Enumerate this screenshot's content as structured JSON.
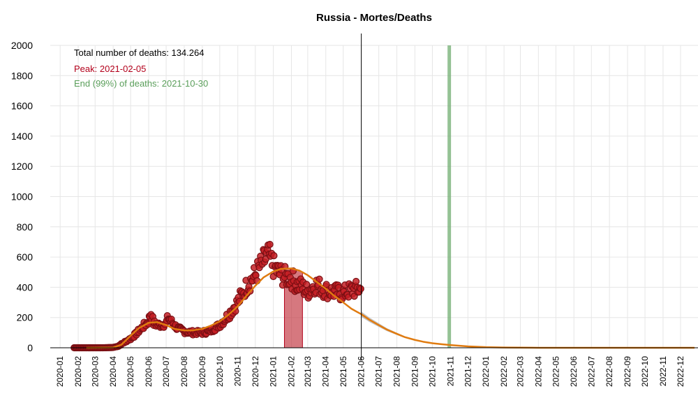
{
  "chart_data": {
    "type": "line",
    "title": "Russia - Mortes/Deaths",
    "xlabel": "",
    "ylabel": "",
    "ylim": [
      0,
      2000
    ],
    "yticks": [
      0,
      200,
      400,
      600,
      800,
      1000,
      1200,
      1400,
      1600,
      1800,
      2000
    ],
    "xlim": [
      "2019-12-15",
      "2022-12-31"
    ],
    "xticks": [
      "2020-01",
      "2020-02",
      "2020-03",
      "2020-04",
      "2020-05",
      "2020-06",
      "2020-07",
      "2020-08",
      "2020-09",
      "2020-10",
      "2020-11",
      "2020-12",
      "2021-01",
      "2021-02",
      "2021-03",
      "2021-04",
      "2021-05",
      "2021-06",
      "2021-07",
      "2021-08",
      "2021-09",
      "2021-10",
      "2021-11",
      "2021-12",
      "2022-01",
      "2022-02",
      "2022-03",
      "2022-04",
      "2022-05",
      "2022-06",
      "2022-07",
      "2022-08",
      "2022-09",
      "2022-10",
      "2022-11",
      "2022-12"
    ],
    "grid": true,
    "annotations": {
      "total": "Total number of deaths: 134.264",
      "peak": "Peak: 2021-02-05",
      "end": "End (99%) of deaths: 2021-10-30"
    },
    "today": "2021-06-01",
    "peak_band": [
      "2021-01-20",
      "2021-02-20"
    ],
    "end_date": "2021-10-30",
    "observed_daily_deaths": [
      [
        "2020-01-25",
        0
      ],
      [
        "2020-02-15",
        0
      ],
      [
        "2020-03-15",
        0
      ],
      [
        "2020-04-01",
        2
      ],
      [
        "2020-04-10",
        10
      ],
      [
        "2020-04-20",
        35
      ],
      [
        "2020-05-01",
        60
      ],
      [
        "2020-05-10",
        90
      ],
      [
        "2020-05-20",
        130
      ],
      [
        "2020-06-01",
        175
      ],
      [
        "2020-06-05",
        230
      ],
      [
        "2020-06-10",
        160
      ],
      [
        "2020-06-20",
        150
      ],
      [
        "2020-07-01",
        160
      ],
      [
        "2020-07-05",
        200
      ],
      [
        "2020-07-15",
        150
      ],
      [
        "2020-07-25",
        120
      ],
      [
        "2020-08-01",
        110
      ],
      [
        "2020-08-15",
        100
      ],
      [
        "2020-09-01",
        100
      ],
      [
        "2020-09-15",
        110
      ],
      [
        "2020-10-01",
        150
      ],
      [
        "2020-10-15",
        210
      ],
      [
        "2020-11-01",
        300
      ],
      [
        "2020-11-15",
        400
      ],
      [
        "2020-12-01",
        480
      ],
      [
        "2020-12-15",
        570
      ],
      [
        "2020-12-25",
        610
      ],
      [
        "2021-01-01",
        540
      ],
      [
        "2021-01-10",
        500
      ],
      [
        "2021-01-20",
        470
      ],
      [
        "2021-02-01",
        460
      ],
      [
        "2021-02-10",
        420
      ],
      [
        "2021-02-20",
        400
      ],
      [
        "2021-03-01",
        370
      ],
      [
        "2021-03-15",
        420
      ],
      [
        "2021-04-01",
        380
      ],
      [
        "2021-04-15",
        370
      ],
      [
        "2021-05-01",
        360
      ],
      [
        "2021-05-15",
        380
      ],
      [
        "2021-05-31",
        390
      ]
    ],
    "series": [
      {
        "name": "",
        "color": "#e07b10",
        "values": [
          [
            "2020-02-15",
            0
          ],
          [
            "2020-04-01",
            2
          ],
          [
            "2020-04-15",
            20
          ],
          [
            "2020-05-01",
            80
          ],
          [
            "2020-05-15",
            130
          ],
          [
            "2020-06-01",
            165
          ],
          [
            "2020-06-15",
            170
          ],
          [
            "2020-07-01",
            150
          ],
          [
            "2020-07-15",
            125
          ],
          [
            "2020-08-01",
            115
          ],
          [
            "2020-08-15",
            115
          ],
          [
            "2020-09-01",
            125
          ],
          [
            "2020-09-15",
            145
          ],
          [
            "2020-10-01",
            175
          ],
          [
            "2020-10-15",
            215
          ],
          [
            "2020-11-01",
            275
          ],
          [
            "2020-11-15",
            340
          ],
          [
            "2020-12-01",
            410
          ],
          [
            "2020-12-15",
            465
          ],
          [
            "2021-01-01",
            505
          ],
          [
            "2021-01-15",
            522
          ],
          [
            "2021-02-01",
            525
          ],
          [
            "2021-02-15",
            510
          ],
          [
            "2021-03-01",
            480
          ],
          [
            "2021-03-15",
            440
          ],
          [
            "2021-04-01",
            390
          ],
          [
            "2021-04-15",
            345
          ],
          [
            "2021-05-01",
            300
          ],
          [
            "2021-05-15",
            258
          ],
          [
            "2021-06-01",
            222
          ],
          [
            "2021-06-15",
            185
          ],
          [
            "2021-07-01",
            150
          ],
          [
            "2021-07-15",
            120
          ],
          [
            "2021-08-01",
            92
          ],
          [
            "2021-08-15",
            70
          ],
          [
            "2021-09-01",
            52
          ],
          [
            "2021-09-15",
            40
          ],
          [
            "2021-10-01",
            30
          ],
          [
            "2021-10-15",
            24
          ],
          [
            "2021-11-01",
            18
          ],
          [
            "2021-12-01",
            9
          ],
          [
            "2022-01-01",
            4
          ],
          [
            "2022-02-01",
            2
          ],
          [
            "2022-04-01",
            0
          ],
          [
            "2022-12-25",
            0
          ]
        ]
      }
    ]
  }
}
